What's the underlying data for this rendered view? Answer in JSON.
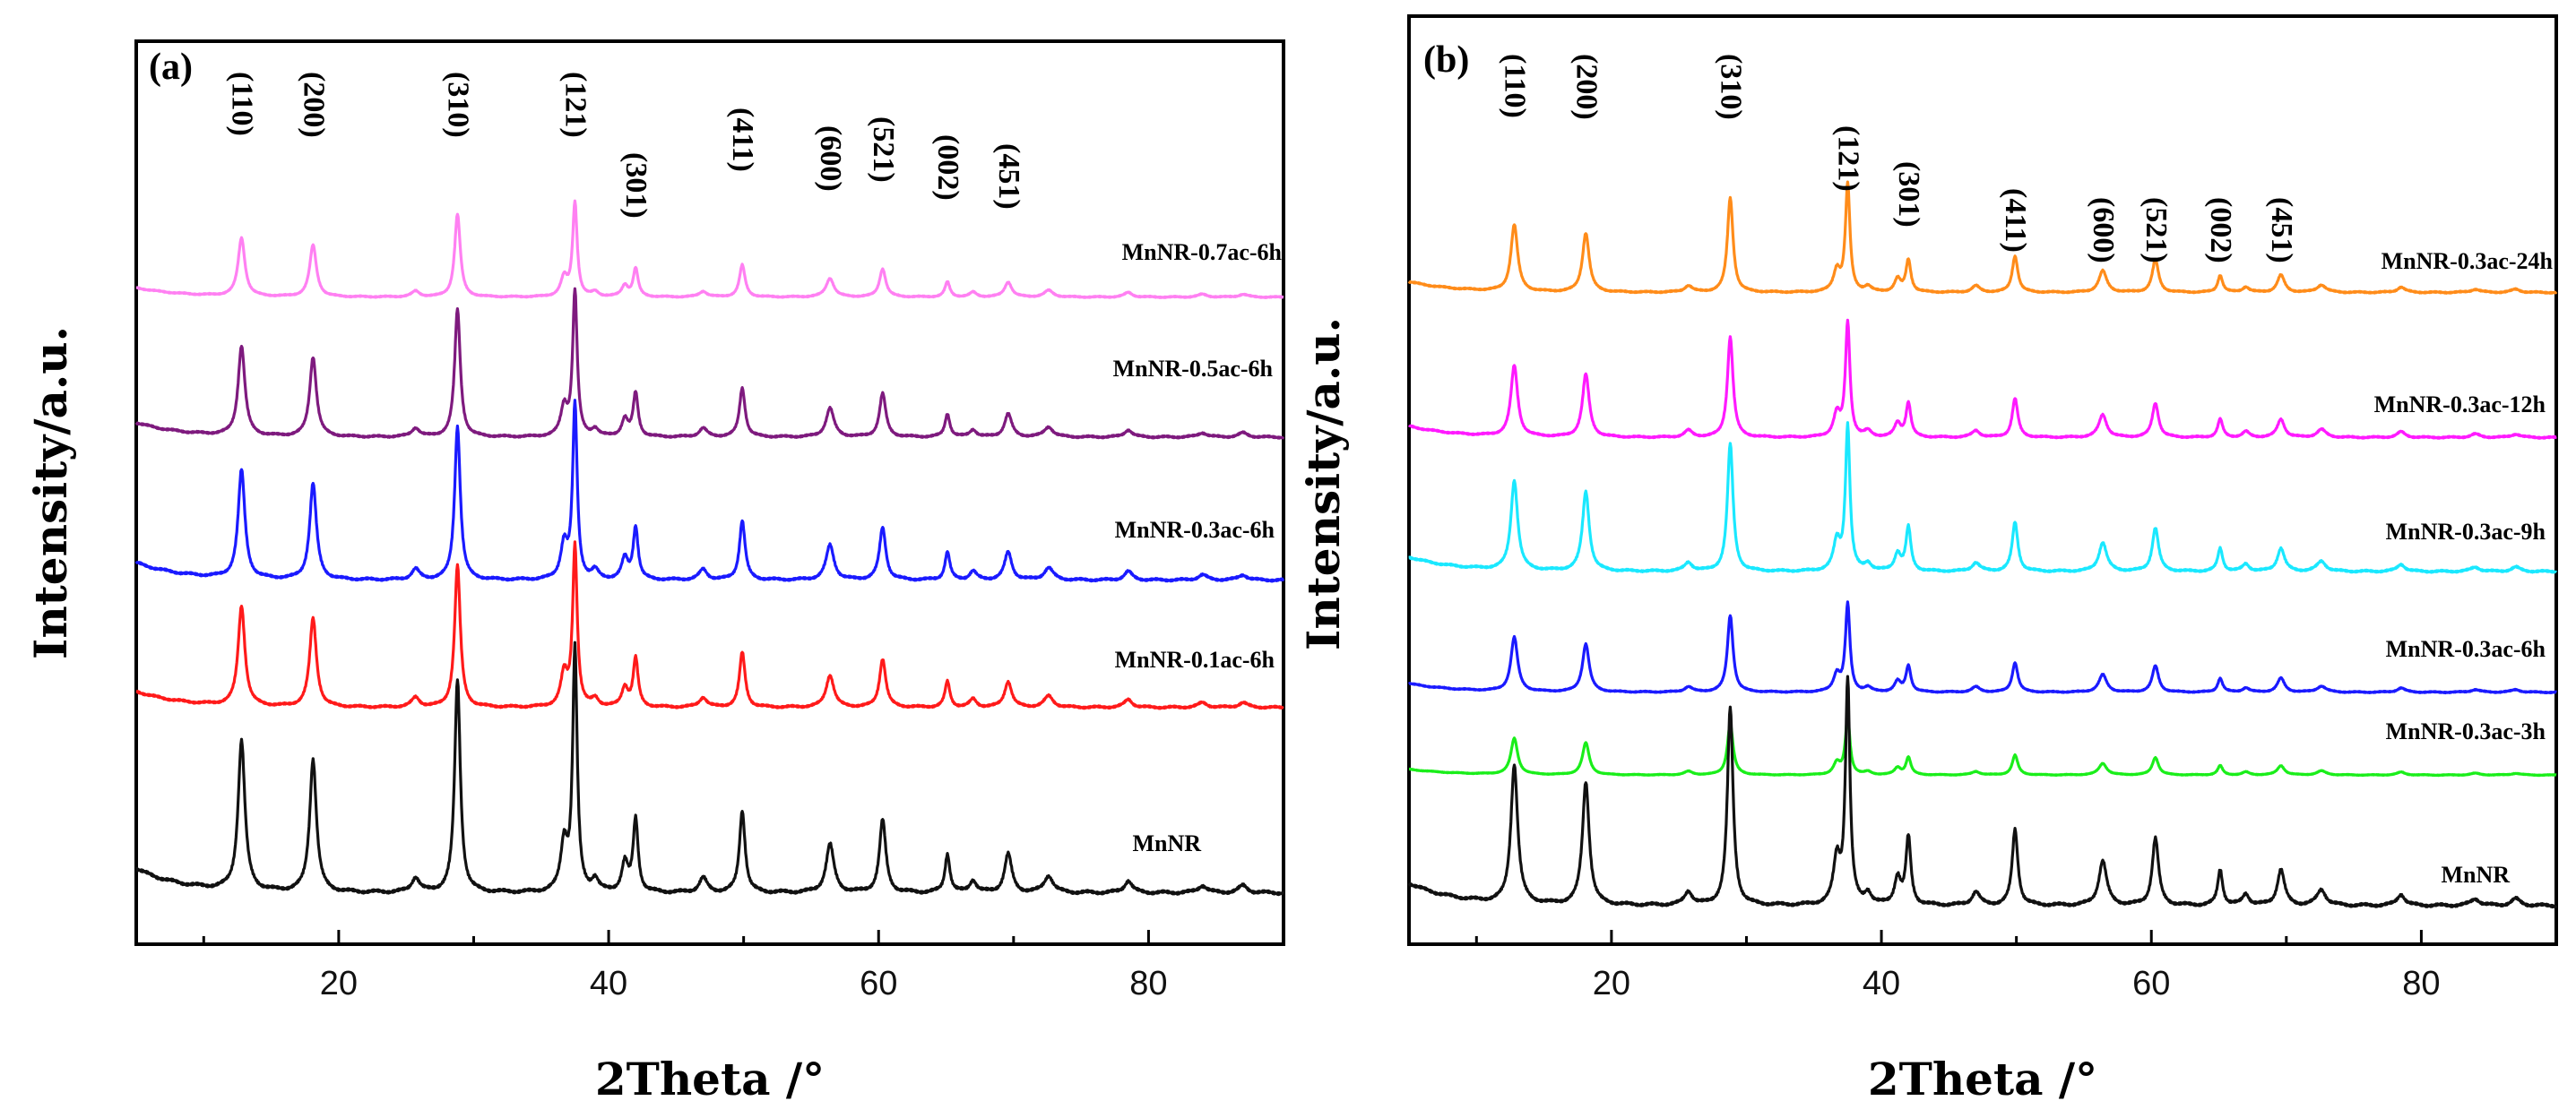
{
  "chart_data": [
    {
      "type": "line",
      "panel_label": "(a)",
      "xlabel": "2Theta /°",
      "ylabel": "Intensity/a.u.",
      "xlim": [
        5,
        90
      ],
      "xticks": [
        20,
        40,
        60,
        80
      ],
      "grid": false,
      "peak_labels": [
        {
          "hkl": "(110)",
          "two_theta": 12.8
        },
        {
          "hkl": "(200)",
          "two_theta": 18.1
        },
        {
          "hkl": "(310)",
          "two_theta": 28.8
        },
        {
          "hkl": "(121)",
          "two_theta": 37.5
        },
        {
          "hkl": "(301)",
          "two_theta": 42.0
        },
        {
          "hkl": "(411)",
          "two_theta": 49.9
        },
        {
          "hkl": "(600)",
          "two_theta": 56.4
        },
        {
          "hkl": "(521)",
          "two_theta": 60.3
        },
        {
          "hkl": "(002)",
          "two_theta": 65.1
        },
        {
          "hkl": "(451)",
          "two_theta": 69.6
        }
      ],
      "series": [
        {
          "name": "MnNR-0.7ac-6h",
          "color": "#ff80f2",
          "scale": 0.7
        },
        {
          "name": "MnNR-0.5ac-6h",
          "color": "#7e1a7e",
          "scale": 0.98
        },
        {
          "name": "MnNR-0.3ac-6h",
          "color": "#1a1aff",
          "scale": 1.0
        },
        {
          "name": "MnNR-0.1ac-6h",
          "color": "#ff1a1a",
          "scale": 1.0
        },
        {
          "name": "MnNR",
          "color": "#111111",
          "scale": 1.0
        }
      ]
    },
    {
      "type": "line",
      "panel_label": "(b)",
      "xlabel": "2Theta /°",
      "ylabel": "Intensity/a.u.",
      "xlim": [
        5,
        90
      ],
      "xticks": [
        20,
        40,
        60,
        80
      ],
      "grid": false,
      "peak_labels": [
        {
          "hkl": "(110)",
          "two_theta": 12.8
        },
        {
          "hkl": "(200)",
          "two_theta": 18.1
        },
        {
          "hkl": "(310)",
          "two_theta": 28.8
        },
        {
          "hkl": "(121)",
          "two_theta": 37.5
        },
        {
          "hkl": "(301)",
          "two_theta": 42.0
        },
        {
          "hkl": "(411)",
          "two_theta": 49.9
        },
        {
          "hkl": "(600)",
          "two_theta": 56.4
        },
        {
          "hkl": "(521)",
          "two_theta": 60.3
        },
        {
          "hkl": "(002)",
          "two_theta": 65.1
        },
        {
          "hkl": "(451)",
          "two_theta": 69.6
        }
      ],
      "series": [
        {
          "name": "MnNR-0.3ac-24h",
          "color": "#ff8c1a",
          "scale": 0.75
        },
        {
          "name": "MnNR-0.3ac-12h",
          "color": "#ff1aff",
          "scale": 0.75
        },
        {
          "name": "MnNR-0.3ac-9h",
          "color": "#1ae8ff",
          "scale": 0.85
        },
        {
          "name": "MnNR-0.3ac-6h",
          "color": "#1a1aff",
          "scale": 0.65
        },
        {
          "name": "MnNR-0.3ac-3h",
          "color": "#1aee1a",
          "scale": 0.5
        },
        {
          "name": "MnNR",
          "color": "#111111",
          "scale": 1.0
        }
      ]
    }
  ]
}
